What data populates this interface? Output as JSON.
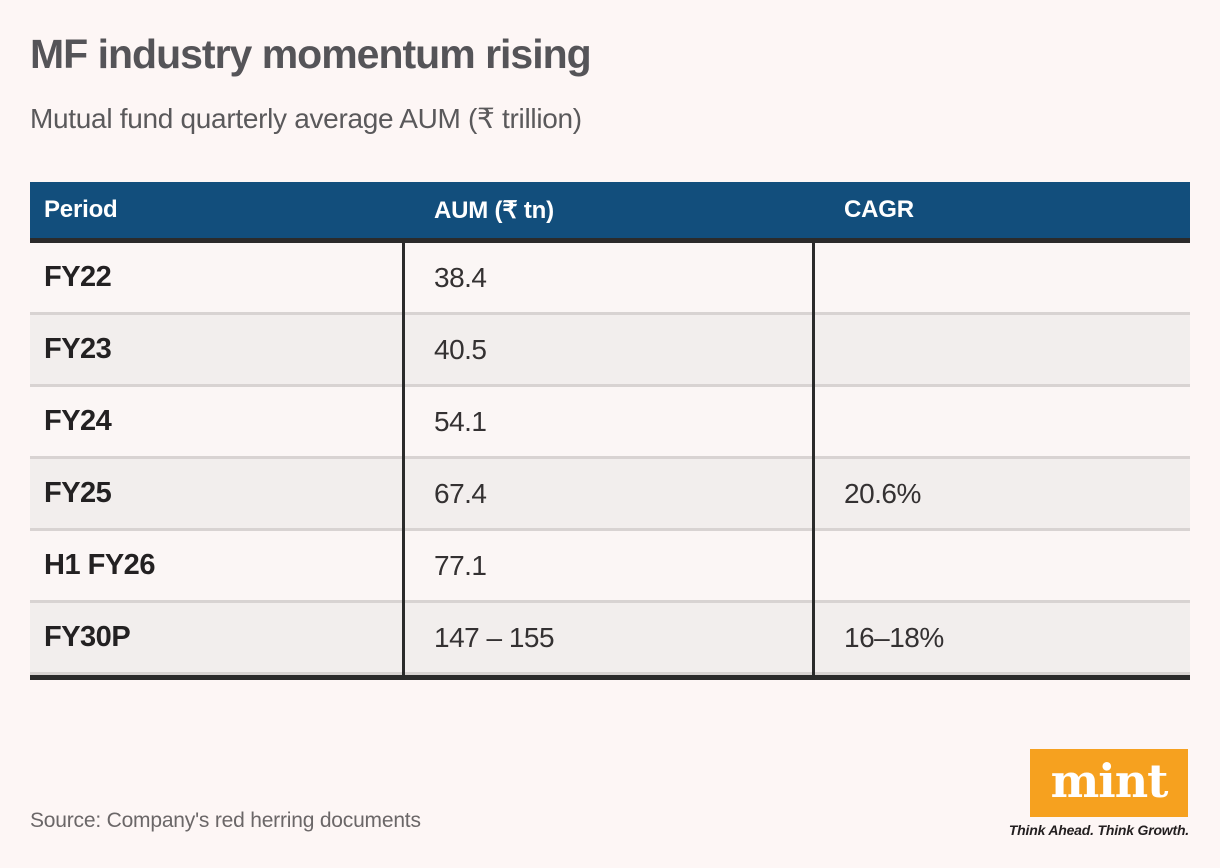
{
  "header": {
    "title": "MF industry momentum rising",
    "subtitle": "Mutual fund quarterly average AUM (₹ trillion)"
  },
  "table": {
    "columns": [
      {
        "label": "Period"
      },
      {
        "label": "AUM (₹ tn)"
      },
      {
        "label": "CAGR"
      }
    ],
    "rows": [
      {
        "period": "FY22",
        "aum": "38.4",
        "cagr": ""
      },
      {
        "period": "FY23",
        "aum": "40.5",
        "cagr": ""
      },
      {
        "period": "FY24",
        "aum": "54.1",
        "cagr": ""
      },
      {
        "period": "FY25",
        "aum": "67.4",
        "cagr": "20.6%"
      },
      {
        "period": "H1 FY26",
        "aum": "77.1",
        "cagr": ""
      },
      {
        "period": "FY30P",
        "aum": "147 – 155",
        "cagr": "16–18%"
      }
    ]
  },
  "footer": {
    "source": "Source: Company's red herring documents",
    "logo_text": "mint",
    "tagline": "Think Ahead. Think Growth."
  },
  "colors": {
    "page_background": "#fdf6f5",
    "table_header_background": "#124e7c",
    "table_header_text": "#ffffff",
    "row_light": "#fbf6f5",
    "row_shaded": "#f2eeed",
    "dark_border": "#2b2b2b",
    "row_separator": "#d8d3d2",
    "logo_orange": "#f6a11f",
    "title_text": "#555458"
  },
  "chart_data": {
    "type": "table",
    "title": "MF industry momentum rising",
    "subtitle": "Mutual fund quarterly average AUM (₹ trillion)",
    "columns": [
      "Period",
      "AUM (₹ tn)",
      "CAGR"
    ],
    "categories": [
      "FY22",
      "FY23",
      "FY24",
      "FY25",
      "H1 FY26",
      "FY30P"
    ],
    "series": [
      {
        "name": "AUM (₹ tn)",
        "values": [
          38.4,
          40.5,
          54.1,
          67.4,
          77.1,
          "147–155"
        ]
      },
      {
        "name": "CAGR",
        "values": [
          null,
          null,
          null,
          "20.6%",
          null,
          "16–18%"
        ]
      }
    ],
    "source": "Source: Company's red herring documents"
  }
}
